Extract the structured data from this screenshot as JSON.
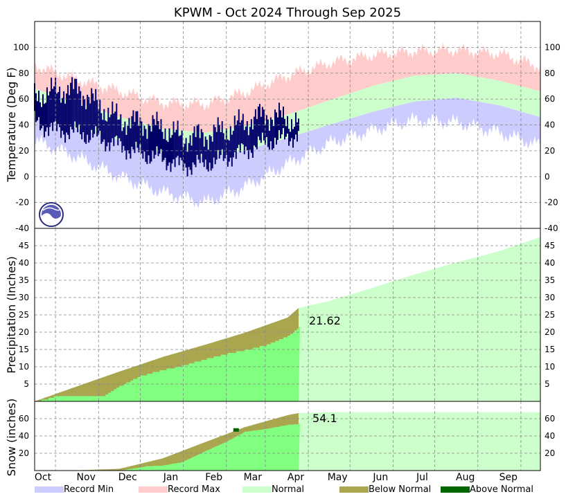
{
  "title": "KPWM - Oct 2024 Through Sep 2025",
  "months": [
    "Oct",
    "Nov",
    "Dec",
    "Jan",
    "Feb",
    "Mar",
    "Apr",
    "May",
    "Jun",
    "Jul",
    "Aug",
    "Sep"
  ],
  "colors": {
    "record_min": "#ccccff",
    "record_max": "#ffcccc",
    "normal": "#ccffcc",
    "observed_temp": "#000066",
    "below_normal": "#aaa650",
    "above_normal": "#006600",
    "observed_precip": "#80ff80"
  },
  "legend": [
    {
      "label": "Record Min",
      "color": "#ccccff"
    },
    {
      "label": "Record Max",
      "color": "#ffcccc"
    },
    {
      "label": "Normal",
      "color": "#ccffcc"
    },
    {
      "label": "Below Normal",
      "color": "#aaa650"
    },
    {
      "label": "Above Normal",
      "color": "#006600"
    }
  ],
  "chart_data": [
    {
      "type": "area",
      "ylabel": "Temperature (Deg F)",
      "ylim": [
        -40,
        120
      ],
      "yticks": [
        -40,
        -20,
        0,
        20,
        40,
        60,
        80,
        100
      ],
      "observed_through": "Apr 9",
      "normal_high": [
        {
          "x": "Oct 1",
          "y": 68
        },
        {
          "x": "Nov 1",
          "y": 57
        },
        {
          "x": "Dec 1",
          "y": 46
        },
        {
          "x": "Jan 1",
          "y": 37
        },
        {
          "x": "Feb 1",
          "y": 34
        },
        {
          "x": "Mar 1",
          "y": 39
        },
        {
          "x": "Apr 1",
          "y": 48
        },
        {
          "x": "May 1",
          "y": 59
        },
        {
          "x": "Jun 1",
          "y": 70
        },
        {
          "x": "Jul 1",
          "y": 78
        },
        {
          "x": "Aug 1",
          "y": 80
        },
        {
          "x": "Sep 1",
          "y": 74
        },
        {
          "x": "Sep 30",
          "y": 66
        }
      ],
      "normal_low": [
        {
          "x": "Oct 1",
          "y": 46
        },
        {
          "x": "Nov 1",
          "y": 37
        },
        {
          "x": "Dec 1",
          "y": 28
        },
        {
          "x": "Jan 1",
          "y": 18
        },
        {
          "x": "Feb 1",
          "y": 15
        },
        {
          "x": "Mar 1",
          "y": 20
        },
        {
          "x": "Apr 1",
          "y": 30
        },
        {
          "x": "May 1",
          "y": 40
        },
        {
          "x": "Jun 1",
          "y": 50
        },
        {
          "x": "Jul 1",
          "y": 58
        },
        {
          "x": "Aug 1",
          "y": 61
        },
        {
          "x": "Sep 1",
          "y": 55
        },
        {
          "x": "Sep 30",
          "y": 46
        }
      ],
      "record_max": [
        {
          "x": "Oct 1",
          "y": 86
        },
        {
          "x": "Nov 1",
          "y": 75
        },
        {
          "x": "Dec 1",
          "y": 66
        },
        {
          "x": "Jan 1",
          "y": 57
        },
        {
          "x": "Feb 1",
          "y": 56
        },
        {
          "x": "Mar 1",
          "y": 65
        },
        {
          "x": "Apr 1",
          "y": 78
        },
        {
          "x": "May 1",
          "y": 88
        },
        {
          "x": "Jun 1",
          "y": 94
        },
        {
          "x": "Jul 1",
          "y": 97
        },
        {
          "x": "Aug 1",
          "y": 98
        },
        {
          "x": "Sep 1",
          "y": 95
        },
        {
          "x": "Sep 30",
          "y": 85
        }
      ],
      "record_min": [
        {
          "x": "Oct 1",
          "y": 28
        },
        {
          "x": "Nov 1",
          "y": 15
        },
        {
          "x": "Dec 1",
          "y": 0
        },
        {
          "x": "Jan 1",
          "y": -12
        },
        {
          "x": "Feb 1",
          "y": -20
        },
        {
          "x": "Mar 1",
          "y": -8
        },
        {
          "x": "Apr 1",
          "y": 10
        },
        {
          "x": "May 1",
          "y": 26
        },
        {
          "x": "Jun 1",
          "y": 36
        },
        {
          "x": "Jul 1",
          "y": 44
        },
        {
          "x": "Aug 1",
          "y": 42
        },
        {
          "x": "Sep 1",
          "y": 34
        },
        {
          "x": "Sep 30",
          "y": 24
        }
      ],
      "observed_high": [
        {
          "x": "Oct 1",
          "y": 62
        },
        {
          "x": "Oct 15",
          "y": 66
        },
        {
          "x": "Nov 1",
          "y": 68
        },
        {
          "x": "Nov 15",
          "y": 56
        },
        {
          "x": "Dec 1",
          "y": 44
        },
        {
          "x": "Dec 15",
          "y": 42
        },
        {
          "x": "Jan 1",
          "y": 38
        },
        {
          "x": "Jan 15",
          "y": 30
        },
        {
          "x": "Feb 1",
          "y": 32
        },
        {
          "x": "Feb 15",
          "y": 36
        },
        {
          "x": "Mar 1",
          "y": 42
        },
        {
          "x": "Mar 15",
          "y": 48
        },
        {
          "x": "Apr 1",
          "y": 45
        },
        {
          "x": "Apr 9",
          "y": 42
        }
      ],
      "observed_low": [
        {
          "x": "Oct 1",
          "y": 42
        },
        {
          "x": "Oct 15",
          "y": 36
        },
        {
          "x": "Nov 1",
          "y": 34
        },
        {
          "x": "Nov 15",
          "y": 30
        },
        {
          "x": "Dec 1",
          "y": 24
        },
        {
          "x": "Dec 15",
          "y": 18
        },
        {
          "x": "Jan 1",
          "y": 14
        },
        {
          "x": "Jan 15",
          "y": 8
        },
        {
          "x": "Feb 1",
          "y": 10
        },
        {
          "x": "Feb 15",
          "y": 14
        },
        {
          "x": "Mar 1",
          "y": 20
        },
        {
          "x": "Mar 15",
          "y": 26
        },
        {
          "x": "Apr 1",
          "y": 30
        },
        {
          "x": "Apr 9",
          "y": 32
        }
      ]
    },
    {
      "type": "area",
      "ylabel": "Precipitation (Inches)",
      "ylim": [
        0,
        50
      ],
      "yticks": [
        5,
        10,
        15,
        20,
        25,
        30,
        35,
        40,
        45
      ],
      "annotation": "21.62",
      "normal_cumulative": [
        {
          "x": "Oct 1",
          "y": 0
        },
        {
          "x": "Nov 1",
          "y": 4.4
        },
        {
          "x": "Dec 1",
          "y": 8.6
        },
        {
          "x": "Jan 1",
          "y": 12.8
        },
        {
          "x": "Feb 1",
          "y": 16.4
        },
        {
          "x": "Mar 1",
          "y": 19.8
        },
        {
          "x": "Apr 1",
          "y": 24.2
        },
        {
          "x": "Apr 9",
          "y": 27.0
        },
        {
          "x": "May 1",
          "y": 29.0
        },
        {
          "x": "Jun 1",
          "y": 32.8
        },
        {
          "x": "Jul 1",
          "y": 36.6
        },
        {
          "x": "Aug 1",
          "y": 40.2
        },
        {
          "x": "Sep 1",
          "y": 43.5
        },
        {
          "x": "Sep 30",
          "y": 47.5
        }
      ],
      "observed_cumulative": [
        {
          "x": "Oct 1",
          "y": 0
        },
        {
          "x": "Oct 15",
          "y": 1.5
        },
        {
          "x": "Nov 1",
          "y": 1.7
        },
        {
          "x": "Nov 20",
          "y": 1.9
        },
        {
          "x": "Dec 1",
          "y": 4.5
        },
        {
          "x": "Dec 15",
          "y": 7.4
        },
        {
          "x": "Jan 1",
          "y": 9.3
        },
        {
          "x": "Jan 15",
          "y": 10.5
        },
        {
          "x": "Feb 1",
          "y": 12.4
        },
        {
          "x": "Feb 15",
          "y": 13.9
        },
        {
          "x": "Mar 1",
          "y": 15.0
        },
        {
          "x": "Mar 15",
          "y": 16.3
        },
        {
          "x": "Apr 1",
          "y": 19.0
        },
        {
          "x": "Apr 9",
          "y": 21.62
        }
      ]
    },
    {
      "type": "area",
      "ylabel": "Snow (inches)",
      "ylim": [
        0,
        80
      ],
      "yticks": [
        20,
        40,
        60
      ],
      "annotation": "54.1",
      "normal_cumulative": [
        {
          "x": "Oct 1",
          "y": 0
        },
        {
          "x": "Nov 1",
          "y": 0.3
        },
        {
          "x": "Dec 1",
          "y": 2
        },
        {
          "x": "Jan 1",
          "y": 14
        },
        {
          "x": "Feb 1",
          "y": 33
        },
        {
          "x": "Mar 1",
          "y": 50
        },
        {
          "x": "Apr 1",
          "y": 64
        },
        {
          "x": "Apr 9",
          "y": 66.5
        },
        {
          "x": "May 1",
          "y": 67.5
        },
        {
          "x": "Sep 30",
          "y": 67.5
        }
      ],
      "observed_cumulative": [
        {
          "x": "Oct 1",
          "y": 0
        },
        {
          "x": "Dec 1",
          "y": 0
        },
        {
          "x": "Dec 20",
          "y": 5
        },
        {
          "x": "Jan 1",
          "y": 6
        },
        {
          "x": "Jan 15",
          "y": 10
        },
        {
          "x": "Feb 1",
          "y": 23
        },
        {
          "x": "Feb 15",
          "y": 33
        },
        {
          "x": "Mar 1",
          "y": 45
        },
        {
          "x": "Mar 15",
          "y": 48
        },
        {
          "x": "Apr 1",
          "y": 53
        },
        {
          "x": "Apr 9",
          "y": 54.1
        }
      ]
    }
  ]
}
